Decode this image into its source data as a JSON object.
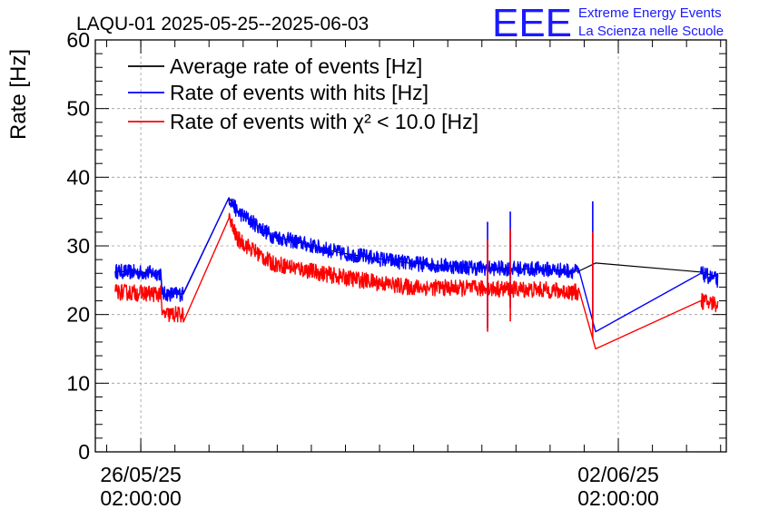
{
  "chart_data": {
    "type": "line",
    "title": "LAQU-01 2025-05-25--2025-06-03",
    "ylabel": "Rate [Hz]",
    "xlabel": "",
    "ylim": [
      0,
      60
    ],
    "y_ticks": [
      "0",
      "10",
      "20",
      "30",
      "40",
      "50",
      "60"
    ],
    "x_axis": {
      "type": "time",
      "range": [
        "2025-05-25T10:00:00",
        "2025-06-03T16:00:00"
      ],
      "tick_labels": [
        {
          "date": "26/05/25",
          "time": "02:00:00",
          "at": "2025-05-26T02:00:00"
        },
        {
          "date": "02/06/25",
          "time": "02:00:00",
          "at": "2025-06-02T02:00:00"
        }
      ]
    },
    "grid": true,
    "legend_position": "top-left",
    "series": [
      {
        "name": "Average rate of events [Hz]",
        "color": "#000000",
        "x": [
          "2025-05-25T17:00:00",
          "2025-05-26T09:00:00",
          "2025-05-26T09:30:00",
          "2025-05-26T17:00:00",
          "2025-05-27T09:00:00",
          "2025-05-27T12:00:00",
          "2025-05-28T00:00:00",
          "2025-05-29T00:00:00",
          "2025-05-30T00:00:00",
          "2025-05-31T00:00:00",
          "2025-06-01T00:00:00",
          "2025-06-01T12:00:00",
          "2025-06-01T18:00:00",
          "2025-06-03T07:00:00",
          "2025-06-03T13:00:00"
        ],
        "values": [
          26.3,
          26.0,
          23.0,
          23.0,
          37.0,
          35.0,
          31.5,
          29.0,
          27.5,
          26.8,
          26.6,
          26.3,
          27.5,
          26.2,
          25.5
        ]
      },
      {
        "name": "Rate of events with hits [Hz]",
        "color": "#0000ff",
        "x": [
          "2025-05-25T17:00:00",
          "2025-05-26T09:00:00",
          "2025-05-26T09:30:00",
          "2025-05-26T17:00:00",
          "2025-05-27T09:00:00",
          "2025-05-27T12:00:00",
          "2025-05-28T00:00:00",
          "2025-05-29T00:00:00",
          "2025-05-30T00:00:00",
          "2025-05-31T00:00:00",
          "2025-06-01T00:00:00",
          "2025-06-01T12:00:00",
          "2025-06-01T18:00:00",
          "2025-06-03T07:00:00",
          "2025-06-03T13:00:00"
        ],
        "values": [
          26.3,
          26.0,
          23.0,
          23.0,
          37.0,
          35.0,
          31.5,
          29.0,
          27.5,
          26.8,
          26.6,
          26.3,
          17.5,
          26.0,
          25.0
        ]
      },
      {
        "name": "Rate of events with χ² < 10.0 [Hz]",
        "color": "#ff0000",
        "x": [
          "2025-05-25T17:00:00",
          "2025-05-26T09:00:00",
          "2025-05-26T09:30:00",
          "2025-05-26T17:00:00",
          "2025-05-27T09:00:00",
          "2025-05-27T12:00:00",
          "2025-05-28T00:00:00",
          "2025-05-29T00:00:00",
          "2025-05-30T00:00:00",
          "2025-05-31T00:00:00",
          "2025-06-01T00:00:00",
          "2025-06-01T12:00:00",
          "2025-06-01T18:00:00",
          "2025-06-03T07:00:00",
          "2025-06-03T13:00:00"
        ],
        "values": [
          23.3,
          23.0,
          20.0,
          20.0,
          34.0,
          31.0,
          27.5,
          25.5,
          24.0,
          23.8,
          23.6,
          23.2,
          15.0,
          22.0,
          21.5
        ]
      }
    ],
    "spikes": [
      {
        "series": 1,
        "x": "2025-05-31T04:00:00",
        "low": 18.0,
        "high": 33.5
      },
      {
        "series": 1,
        "x": "2025-05-31T12:00:00",
        "low": 21.0,
        "high": 35.0
      },
      {
        "series": 1,
        "x": "2025-06-01T17:00:00",
        "low": 18.0,
        "high": 36.5
      },
      {
        "series": 2,
        "x": "2025-05-31T04:00:00",
        "low": 17.5,
        "high": 31.0
      },
      {
        "series": 2,
        "x": "2025-05-31T12:00:00",
        "low": 19.0,
        "high": 32.5
      },
      {
        "series": 2,
        "x": "2025-06-01T17:00:00",
        "low": 16.5,
        "high": 32.0
      }
    ]
  },
  "branding": {
    "logo_text": "EEE",
    "line1": "Extreme Energy Events",
    "line2": "La Scienza nelle Scuole",
    "color": "#1a1aff"
  }
}
